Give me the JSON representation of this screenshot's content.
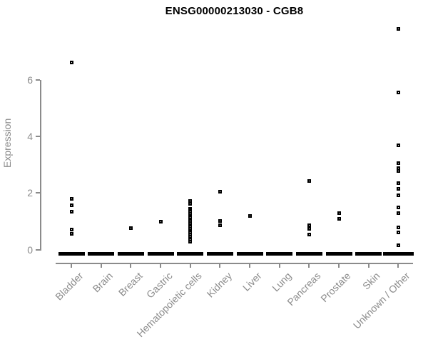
{
  "chart_data": {
    "type": "scatter",
    "title": "ENSG00000213030 - CGB8",
    "xlabel": "",
    "ylabel": "Expression",
    "ylim": [
      0,
      7.9
    ],
    "yticks": [
      0,
      2,
      4,
      6
    ],
    "grid": false,
    "legend": null,
    "marker": "small open black square",
    "categories": [
      "Bladder",
      "Brain",
      "Breast",
      "Gastric",
      "Hematopoietic cells",
      "Kidney",
      "Liver",
      "Lung",
      "Pancreas",
      "Prostate",
      "Skin",
      "Unknown / Other"
    ],
    "points": {
      "Bladder": [
        6.62,
        1.8,
        1.57,
        1.35,
        0.7,
        0.55
      ],
      "Brain": [],
      "Breast": [
        0.75
      ],
      "Gastric": [
        0.98
      ],
      "Hematopoietic cells": [
        1.73,
        1.62,
        1.45,
        1.4,
        1.33,
        1.27,
        1.2,
        1.13,
        1.07,
        1.0,
        0.93,
        0.87,
        0.8,
        0.73,
        0.67,
        0.6,
        0.53,
        0.45,
        0.35,
        0.27
      ],
      "Kidney": [
        2.04,
        1.02,
        0.86
      ],
      "Liver": [
        1.18
      ],
      "Lung": [],
      "Pancreas": [
        2.43,
        0.86,
        0.74,
        0.52
      ],
      "Prostate": [
        1.28,
        1.08
      ],
      "Skin": [],
      "Unknown / Other": [
        7.82,
        5.55,
        3.7,
        3.06,
        2.88,
        2.79,
        2.34,
        2.16,
        1.92,
        1.5,
        1.28,
        0.78,
        0.6,
        0.14
      ]
    },
    "zero_cluster_note": "every category additionally shows a dense horizontal bar of many overlapping points at expression = 0"
  },
  "colors": {
    "background": "#ffffff",
    "axis": "#8b8b8b",
    "tick_labels": "#8b8b8b",
    "title": "#000000",
    "points": "#000000"
  }
}
